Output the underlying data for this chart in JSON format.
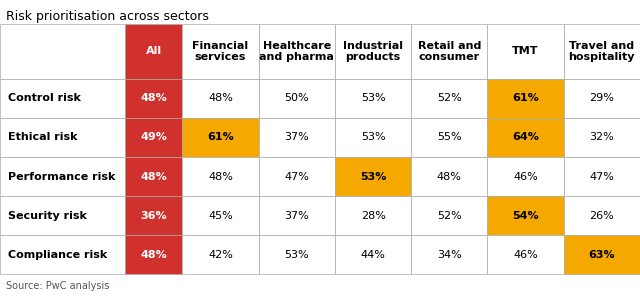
{
  "title": "Risk prioritisation across sectors",
  "source": "Source: PwC analysis",
  "columns": [
    "All",
    "Financial\nservices",
    "Healthcare\nand pharma",
    "Industrial\nproducts",
    "Retail and\nconsumer",
    "TMT",
    "Travel and\nhospitality"
  ],
  "rows": [
    "Control risk",
    "Ethical risk",
    "Performance risk",
    "Security risk",
    "Compliance risk"
  ],
  "values": [
    [
      "48%",
      "48%",
      "50%",
      "53%",
      "52%",
      "61%",
      "29%"
    ],
    [
      "49%",
      "61%",
      "37%",
      "53%",
      "55%",
      "64%",
      "32%"
    ],
    [
      "48%",
      "48%",
      "47%",
      "53%",
      "48%",
      "46%",
      "47%"
    ],
    [
      "36%",
      "45%",
      "37%",
      "28%",
      "52%",
      "54%",
      "26%"
    ],
    [
      "48%",
      "42%",
      "53%",
      "44%",
      "34%",
      "46%",
      "63%"
    ]
  ],
  "cell_colors": [
    [
      "#D0312D",
      "none",
      "none",
      "none",
      "none",
      "#F5A800",
      "none"
    ],
    [
      "#D0312D",
      "#F5A800",
      "none",
      "none",
      "none",
      "#F5A800",
      "none"
    ],
    [
      "#D0312D",
      "none",
      "none",
      "#F5A800",
      "none",
      "none",
      "none"
    ],
    [
      "#D0312D",
      "none",
      "none",
      "none",
      "none",
      "#F5A800",
      "none"
    ],
    [
      "#D0312D",
      "none",
      "none",
      "none",
      "none",
      "none",
      "#F5A800"
    ]
  ],
  "text_colors": [
    [
      "white",
      "black",
      "black",
      "black",
      "black",
      "black",
      "black"
    ],
    [
      "white",
      "black",
      "black",
      "black",
      "black",
      "black",
      "black"
    ],
    [
      "white",
      "black",
      "black",
      "black",
      "black",
      "black",
      "black"
    ],
    [
      "white",
      "black",
      "black",
      "black",
      "black",
      "black",
      "black"
    ],
    [
      "white",
      "black",
      "black",
      "black",
      "black",
      "black",
      "black"
    ]
  ],
  "header_bg": "#D0312D",
  "header_text": "white",
  "row_label_color": "black",
  "border_color": "#aaaaaa",
  "background": "white",
  "title_fontsize": 9,
  "cell_fontsize": 8,
  "header_fontsize": 8,
  "row_fontsize": 8
}
